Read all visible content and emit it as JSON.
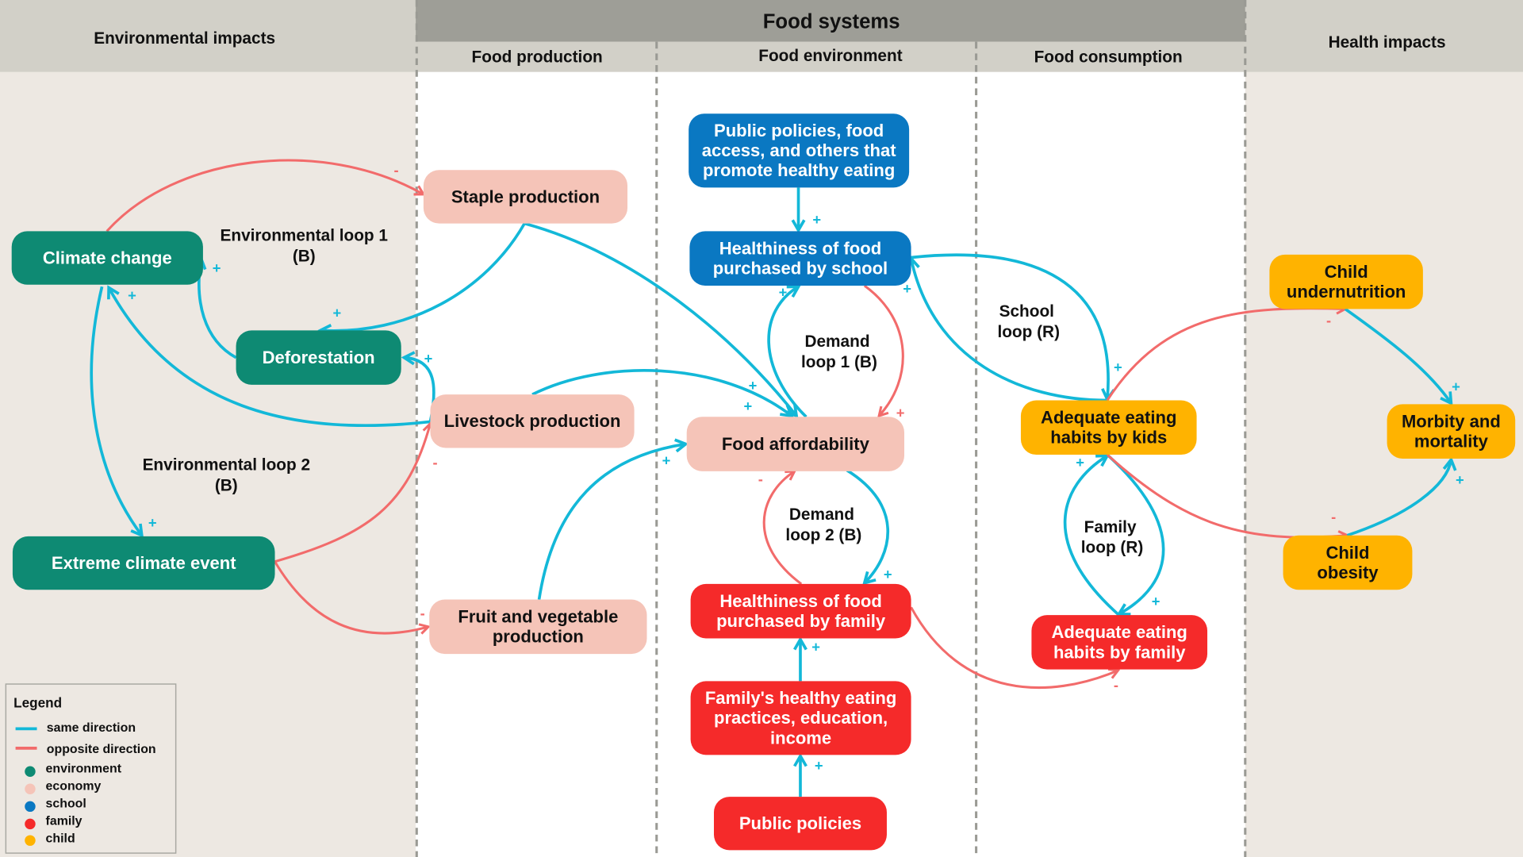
{
  "headers": {
    "environmental": "Environmental impacts",
    "food_systems": "Food systems",
    "food_production": "Food production",
    "food_environment": "Food environment",
    "food_consumption": "Food consumption",
    "health": "Health impacts"
  },
  "colors": {
    "environment": "#0e8a73",
    "economy": "#f5c4b8",
    "school": "#0a78c2",
    "family": "#f52a2a",
    "child": "#ffb300",
    "same_direction": "#13b8d8",
    "opposite_direction": "#f26b6b"
  },
  "nodes": {
    "climate_change": [
      "Climate change"
    ],
    "deforestation": [
      "Deforestation"
    ],
    "extreme_climate": [
      "Extreme climate event"
    ],
    "staple": [
      "Staple production"
    ],
    "livestock": [
      "Livestock production"
    ],
    "fruit_veg": [
      "Fruit and vegetable",
      "production"
    ],
    "school_policies": [
      "Public policies, food",
      "access, and others that",
      "promote healthy eating"
    ],
    "school_food": [
      "Healthiness of food",
      "purchased by school"
    ],
    "affordability": [
      "Food affordability"
    ],
    "family_food": [
      "Healthiness of food",
      "purchased by family"
    ],
    "family_practices": [
      "Family's healthy eating",
      "practices, education,",
      "income"
    ],
    "public_policies": [
      "Public policies"
    ],
    "kids_habits": [
      "Adequate eating",
      "habits by kids"
    ],
    "family_habits": [
      "Adequate eating",
      "habits by family"
    ],
    "undernutrition": [
      "Child",
      "undernutrition"
    ],
    "morbidity": [
      "Morbity and",
      "mortality"
    ],
    "obesity": [
      "Child",
      "obesity"
    ]
  },
  "loops": {
    "env1": [
      "Environmental loop 1",
      "(B)"
    ],
    "env2": [
      "Environmental loop 2",
      "(B)"
    ],
    "demand1": [
      "Demand",
      "loop 1 (B)"
    ],
    "demand2": [
      "Demand",
      "loop 2 (B)"
    ],
    "school": [
      "School",
      "loop (R)"
    ],
    "family": [
      "Family",
      "loop (R)"
    ]
  },
  "signs": [
    "-",
    "+",
    "+",
    "+",
    "+",
    "+",
    "-",
    "-",
    "+",
    "+",
    "+",
    "+",
    "+",
    "+",
    "+",
    "+",
    "+",
    "-",
    "+",
    "+",
    "-",
    "+",
    "+",
    "-",
    "-",
    "+",
    "+"
  ],
  "legend": {
    "title": "Legend",
    "lines": [
      "same direction",
      "opposite direction"
    ],
    "categories": [
      "environment",
      "economy",
      "school",
      "family",
      "child"
    ]
  }
}
